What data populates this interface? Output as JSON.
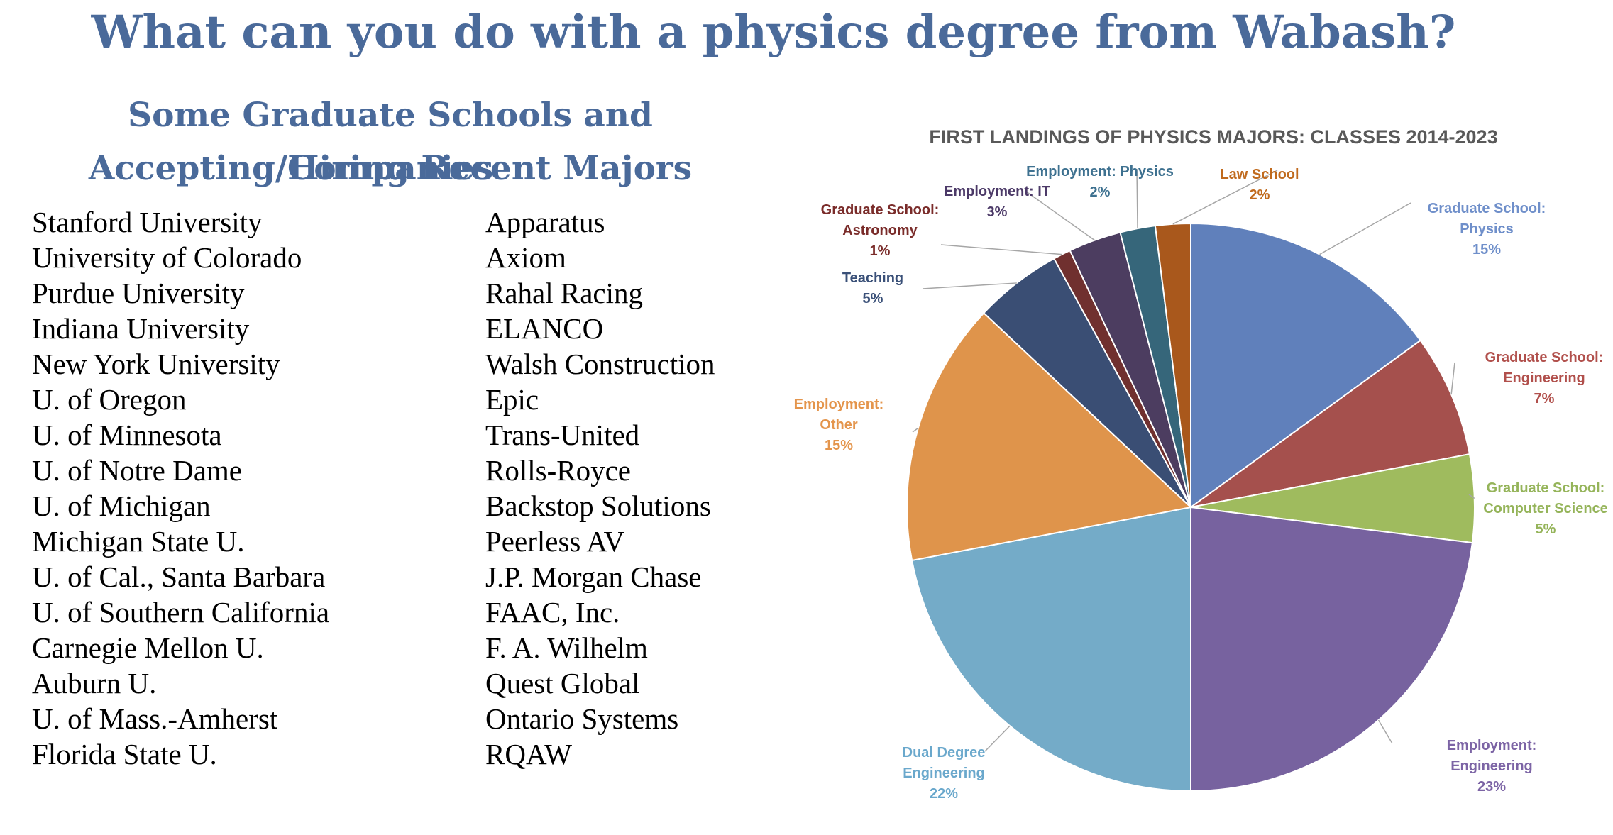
{
  "page": {
    "title": "What can you do with a physics degree from Wabash?",
    "subtitle_line1": "Some Graduate Schools and Companies",
    "subtitle_line2": "Accepting/Hiring Recent Majors",
    "title_color": "#4a6a9a"
  },
  "graduate_schools": [
    "Stanford University",
    "University of Colorado",
    "Purdue University",
    "Indiana University",
    "New York University",
    "U. of Oregon",
    "U. of Minnesota",
    "U. of Notre Dame",
    "U. of Michigan",
    "Michigan State U.",
    "U. of Cal., Santa Barbara",
    "U. of Southern California",
    "Carnegie Mellon U.",
    "Auburn U.",
    "U. of Mass.-Amherst",
    "Florida State U."
  ],
  "companies": [
    "Apparatus",
    "Axiom",
    "Rahal Racing",
    "ELANCO",
    "Walsh Construction",
    "Epic",
    "Trans-United",
    "Rolls-Royce",
    "Backstop Solutions",
    "Peerless AV",
    "J.P. Morgan Chase",
    "FAAC, Inc.",
    "F. A. Wilhelm",
    "Quest Global",
    "Ontario Systems",
    "RQAW"
  ],
  "chart_data": {
    "type": "pie",
    "title": "FIRST LANDINGS OF PHYSICS MAJORS: CLASSES 2014-2023",
    "slices": [
      {
        "label_lines": [
          "Graduate School:",
          "Physics"
        ],
        "value": 15,
        "pct": "15%",
        "color": "#6080bb",
        "label_color": "#6f8fca"
      },
      {
        "label_lines": [
          "Graduate School:",
          "Engineering"
        ],
        "value": 7,
        "pct": "7%",
        "color": "#a5504d",
        "label_color": "#b1504c"
      },
      {
        "label_lines": [
          "Graduate School:",
          "Computer Science"
        ],
        "value": 5,
        "pct": "5%",
        "color": "#9fbb5e",
        "label_color": "#95b45a"
      },
      {
        "label_lines": [
          "Employment:",
          "Engineering"
        ],
        "value": 23,
        "pct": "23%",
        "color": "#77629f",
        "label_color": "#7c64a5"
      },
      {
        "label_lines": [
          "Dual Degree",
          "Engineering"
        ],
        "value": 22,
        "pct": "22%",
        "color": "#74abc8",
        "label_color": "#6aa8cc"
      },
      {
        "label_lines": [
          "Employment:",
          "Other"
        ],
        "value": 15,
        "pct": "15%",
        "color": "#df944b",
        "label_color": "#e4954c"
      },
      {
        "label_lines": [
          "Teaching"
        ],
        "value": 5,
        "pct": "5%",
        "color": "#3a4e74",
        "label_color": "#3a5078"
      },
      {
        "label_lines": [
          "Graduate School:",
          "Astronomy"
        ],
        "value": 1,
        "pct": "1%",
        "color": "#70302f",
        "label_color": "#7a2c2a"
      },
      {
        "label_lines": [
          "Employment: IT"
        ],
        "value": 3,
        "pct": "3%",
        "color": "#4c3d60",
        "label_color": "#4c3a68"
      },
      {
        "label_lines": [
          "Employment: Physics"
        ],
        "value": 2,
        "pct": "2%",
        "color": "#36667a",
        "label_color": "#3e7190"
      },
      {
        "label_lines": [
          "Law School"
        ],
        "value": 2,
        "pct": "2%",
        "color": "#a9581c",
        "label_color": "#c06a1d"
      }
    ]
  }
}
